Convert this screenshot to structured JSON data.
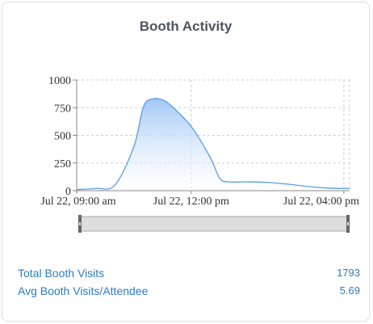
{
  "card": {
    "title": "Booth Activity"
  },
  "chart_data": {
    "type": "area",
    "title": "Booth Activity",
    "x_unit": "time",
    "x_tick_labels": [
      "Jul 22, 09:00 am",
      "Jul 22, 12:00 pm",
      "Jul 22, 04:00 pm"
    ],
    "x_tick_hours": [
      9,
      12,
      16
    ],
    "y_ticks": [
      0,
      250,
      500,
      750,
      1000
    ],
    "ylim": [
      0,
      1000
    ],
    "xlim_hours": [
      9,
      16.15
    ],
    "grid": true,
    "series": [
      {
        "color": "#5b9ce6",
        "points": [
          [
            9.0,
            10
          ],
          [
            9.5,
            20
          ],
          [
            10.0,
            50
          ],
          [
            10.5,
            400
          ],
          [
            10.75,
            760
          ],
          [
            11.0,
            830
          ],
          [
            11.25,
            820
          ],
          [
            11.5,
            760
          ],
          [
            12.0,
            580
          ],
          [
            12.5,
            300
          ],
          [
            12.75,
            110
          ],
          [
            13.0,
            80
          ],
          [
            13.5,
            80
          ],
          [
            14.0,
            75
          ],
          [
            14.5,
            60
          ],
          [
            15.0,
            40
          ],
          [
            15.5,
            25
          ],
          [
            16.0,
            20
          ],
          [
            16.15,
            20
          ]
        ]
      }
    ]
  },
  "stats": [
    {
      "label": "Total Booth Visits",
      "value": "1793"
    },
    {
      "label": "Avg Booth Visits/Attendee",
      "value": "5.69"
    }
  ],
  "colors": {
    "accent": "#2c7bc2",
    "line": "#5b9ce6",
    "fill_top": "#9cc4f5",
    "grid": "#cccccc"
  }
}
